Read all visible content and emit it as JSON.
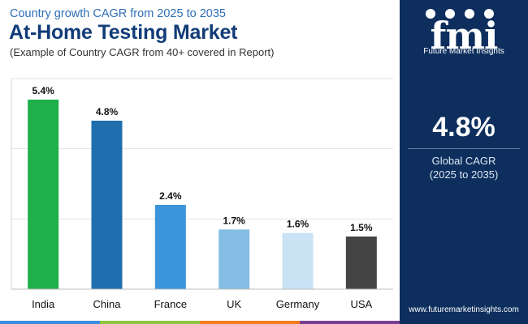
{
  "header": {
    "subtitle": "Country growth CAGR from 2025 to 2035",
    "title": "At-Home Testing Market",
    "note": "(Example of Country CAGR from 40+ covered in Report)"
  },
  "brand": {
    "logo_letters": "fmi",
    "logo_caption": "Future Market Insights",
    "website": "www.futuremarketinsights.com",
    "panel_color": "#0e2f5e"
  },
  "kpi": {
    "value": "4.8%",
    "label_line1": "Global CAGR",
    "label_line2": "(2025 to 2035)"
  },
  "footer_colors": [
    "#3a8dde",
    "#8cc63f",
    "#f47b20",
    "#7a3e8f"
  ],
  "chart_data": {
    "type": "bar",
    "categories": [
      "India",
      "China",
      "France",
      "UK",
      "Germany",
      "USA"
    ],
    "values": [
      5.4,
      4.8,
      2.4,
      1.7,
      1.6,
      1.5
    ],
    "value_labels": [
      "5.4%",
      "4.8%",
      "2.4%",
      "1.7%",
      "1.6%",
      "1.5%"
    ],
    "colors": [
      "#1fb04a",
      "#1f6fae",
      "#3a95db",
      "#84bde3",
      "#c9e2f4",
      "#444444"
    ],
    "title": "",
    "xlabel": "",
    "ylabel": "",
    "ylim": [
      0,
      6
    ],
    "grid": true
  }
}
